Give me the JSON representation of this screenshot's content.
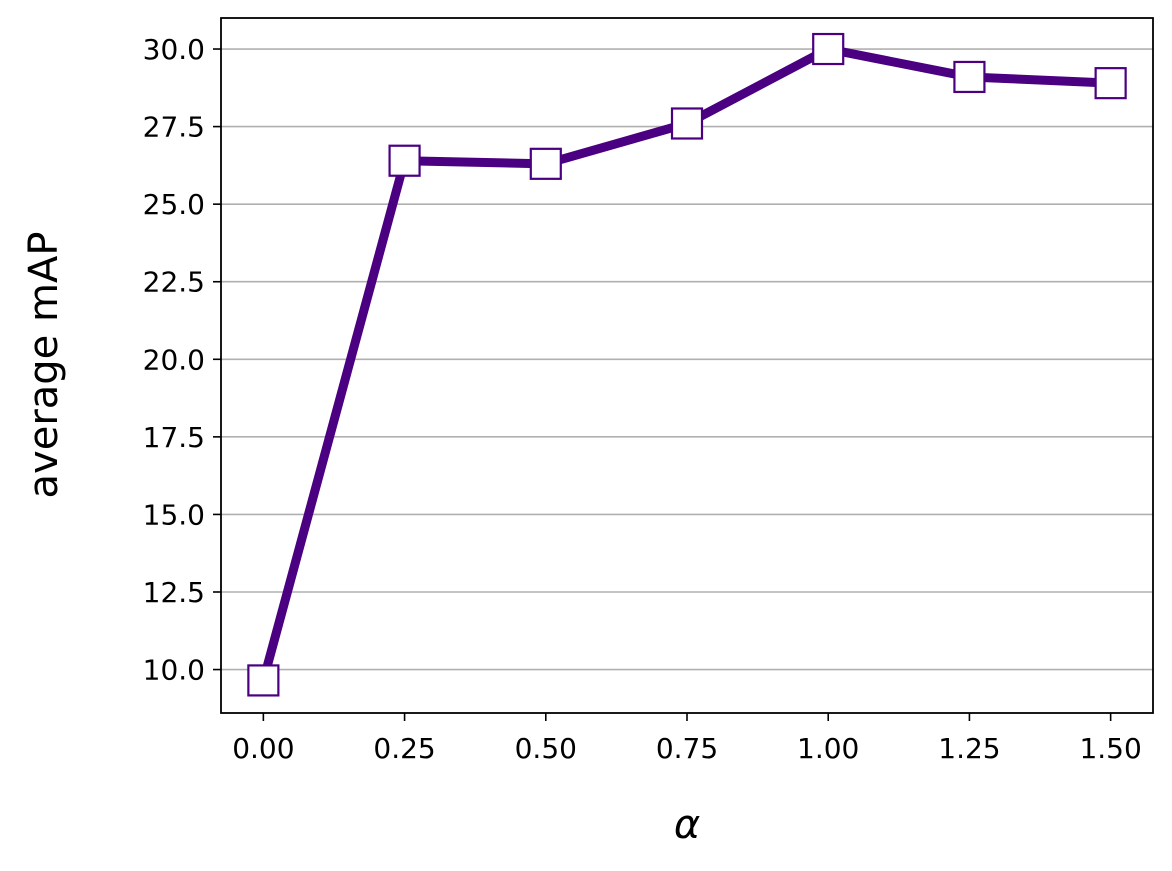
{
  "chart_data": {
    "type": "line",
    "title": "",
    "xlabel": "α",
    "ylabel": "average mAP",
    "x": [
      0.0,
      0.25,
      0.5,
      0.75,
      1.0,
      1.25,
      1.5
    ],
    "x_tick_labels": [
      "0.00",
      "0.25",
      "0.50",
      "0.75",
      "1.00",
      "1.25",
      "1.50"
    ],
    "y_tick_values": [
      10.0,
      12.5,
      15.0,
      17.5,
      20.0,
      22.5,
      25.0,
      27.5,
      30.0
    ],
    "y_tick_labels": [
      "10.0",
      "12.5",
      "15.0",
      "17.5",
      "20.0",
      "22.5",
      "25.0",
      "27.5",
      "30.0"
    ],
    "xlim": [
      -0.075,
      1.575
    ],
    "ylim": [
      8.6,
      31.0
    ],
    "grid": "horizontal",
    "series": [
      {
        "values": [
          9.65,
          26.4,
          26.3,
          27.6,
          30.0,
          29.1,
          28.9
        ],
        "color": "#4b0082",
        "marker": "square",
        "marker_fill": "#ffffff"
      }
    ]
  }
}
